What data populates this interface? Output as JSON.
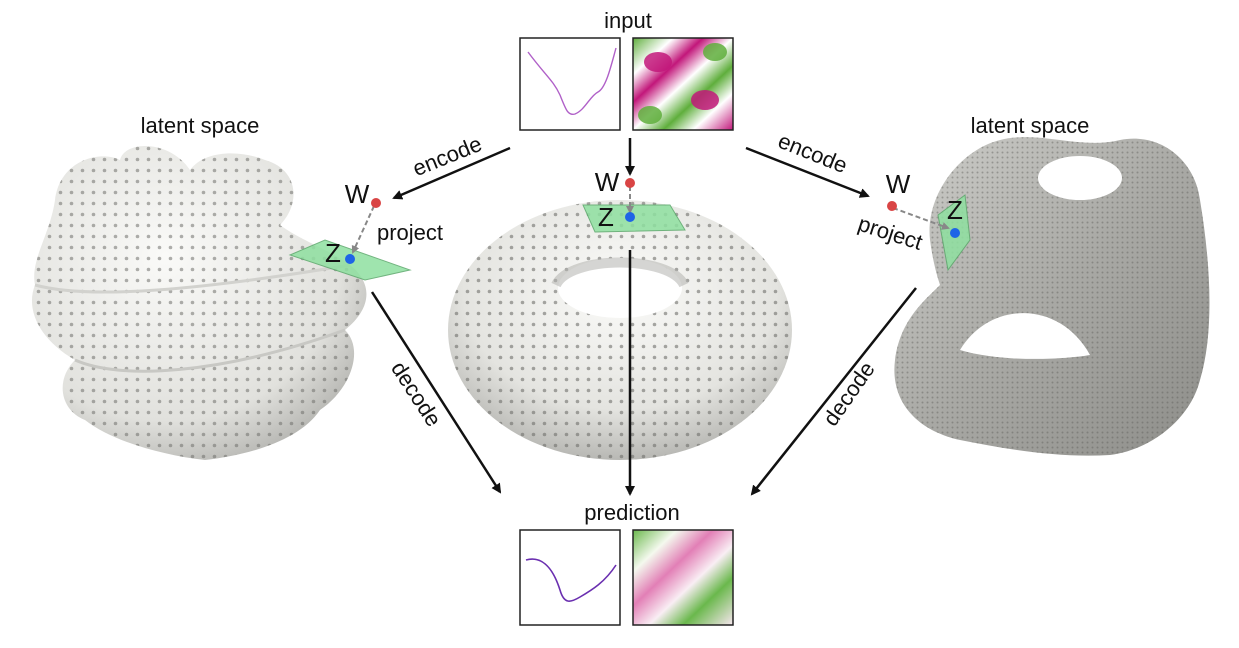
{
  "labels": {
    "input": "input",
    "prediction": "prediction",
    "latent_left": "latent space",
    "latent_right": "latent space",
    "encode_left": "encode",
    "encode_right": "encode",
    "decode_left": "decode",
    "decode_right": "decode",
    "project_left": "project",
    "project_right": "project",
    "w_left": "W",
    "w_center": "W",
    "w_right": "W",
    "z_left": "Z",
    "z_center": "Z",
    "z_right": "Z"
  },
  "colors": {
    "curve": "#b060c8",
    "curve_pred": "#6a2fb0",
    "pink": "#c2177a",
    "green": "#5fae3c",
    "plane": "#8fe0a0",
    "w_point": "#d94545",
    "z_point": "#1e64e6",
    "surface": "#e7e7e3",
    "surface_dark": "#9a9a96",
    "dots": "#6f6f6b"
  },
  "icons": {
    "arrows": "arrow-icon",
    "w_point": "red-dot-icon",
    "z_point": "blue-dot-icon"
  }
}
